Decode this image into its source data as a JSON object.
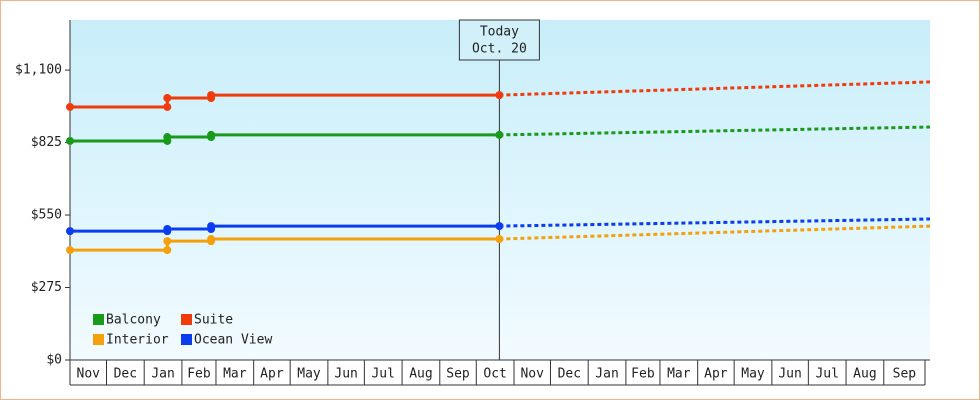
{
  "chart_data": {
    "type": "line",
    "x": [
      0,
      80,
      80,
      116,
      116,
      353,
      707
    ],
    "series": [
      {
        "name": "Balcony",
        "color": "#1a9a1a",
        "values": [
          831,
          831,
          846,
          846,
          854,
          854,
          884
        ]
      },
      {
        "name": "Suite",
        "color": "#f03c0c",
        "values": [
          960,
          960,
          994,
          994,
          1005,
          1005,
          1055
        ]
      },
      {
        "name": "Interior",
        "color": "#f5a00a",
        "values": [
          417,
          417,
          451,
          451,
          459,
          459,
          508
        ]
      },
      {
        "name": "Ocean View",
        "color": "#0a3cf0",
        "values": [
          489,
          489,
          497,
          497,
          508,
          508,
          535
        ]
      }
    ],
    "annotation": {
      "x": 353,
      "lines": [
        "Today",
        "Oct. 20"
      ]
    },
    "xlim": [
      0,
      707
    ],
    "xticks": [
      {
        "value": 0,
        "label": "Nov"
      },
      {
        "value": 30,
        "label": "Dec"
      },
      {
        "value": 61,
        "label": "Jan"
      },
      {
        "value": 92,
        "label": "Feb"
      },
      {
        "value": 120,
        "label": "Mar"
      },
      {
        "value": 151,
        "label": "Apr"
      },
      {
        "value": 181,
        "label": "May"
      },
      {
        "value": 212,
        "label": "Jun"
      },
      {
        "value": 242,
        "label": "Jul"
      },
      {
        "value": 273,
        "label": "Aug"
      },
      {
        "value": 304,
        "label": "Sep"
      },
      {
        "value": 334,
        "label": "Oct"
      },
      {
        "value": 365,
        "label": "Nov"
      },
      {
        "value": 395,
        "label": "Dec"
      },
      {
        "value": 426,
        "label": "Jan"
      },
      {
        "value": 457,
        "label": "Feb"
      },
      {
        "value": 485,
        "label": "Mar"
      },
      {
        "value": 516,
        "label": "Apr"
      },
      {
        "value": 546,
        "label": "May"
      },
      {
        "value": 577,
        "label": "Jun"
      },
      {
        "value": 607,
        "label": "Jul"
      },
      {
        "value": 638,
        "label": "Aug"
      },
      {
        "value": 669,
        "label": "Sep"
      }
    ],
    "ylim": [
      0,
      1290
    ],
    "yticks": [
      {
        "value": 0,
        "label": "$0"
      },
      {
        "value": 275,
        "label": "$275"
      },
      {
        "value": 550,
        "label": "$550"
      },
      {
        "value": 825,
        "label": "$825"
      },
      {
        "value": 1100,
        "label": "$1,100"
      }
    ],
    "legend": "lower left"
  }
}
